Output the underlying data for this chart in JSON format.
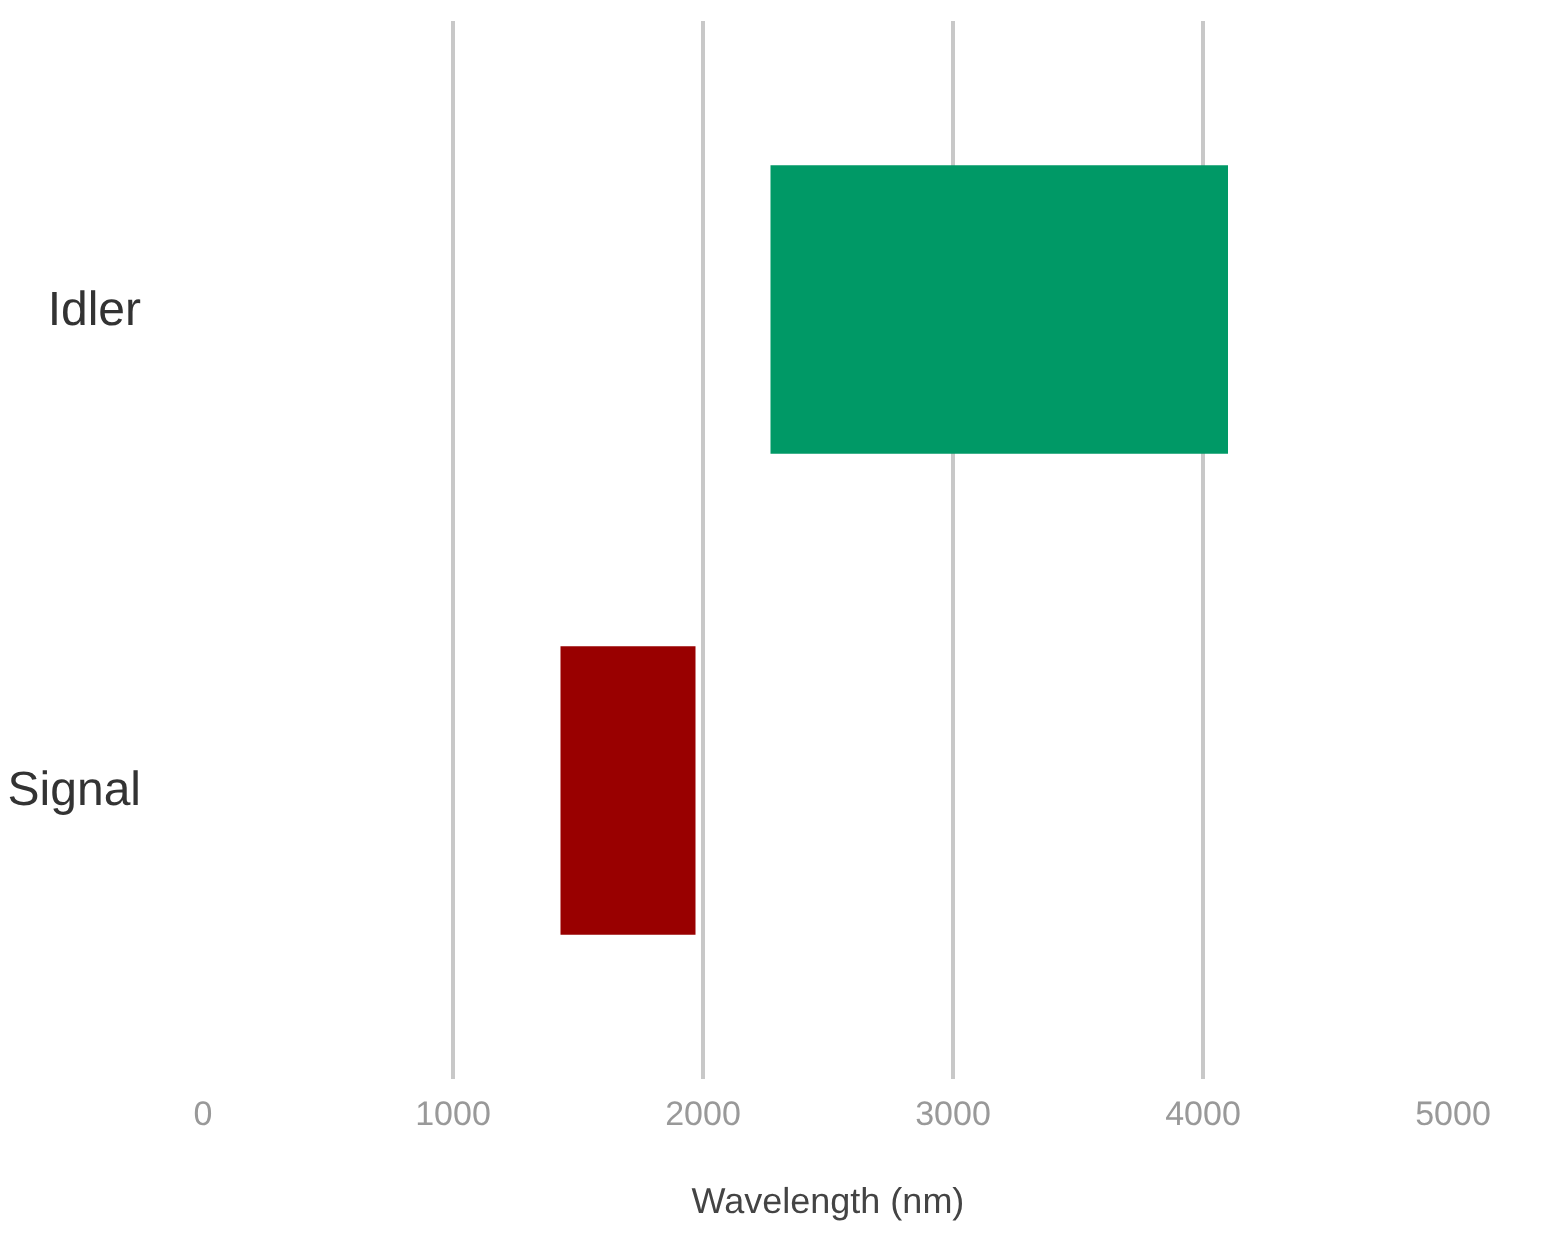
{
  "chart_data": {
    "type": "bar",
    "orientation": "horizontal",
    "xlabel": "Wavelength (nm)",
    "categories": [
      "Idler",
      "Signal"
    ],
    "base": [
      2270,
      1430
    ],
    "values": [
      1830,
      540
    ],
    "colors": [
      "#009966",
      "#990000"
    ],
    "xlim": [
      0,
      5000
    ],
    "xticks": [
      0,
      1000,
      2000,
      3000,
      4000,
      5000
    ],
    "grid": "x"
  }
}
